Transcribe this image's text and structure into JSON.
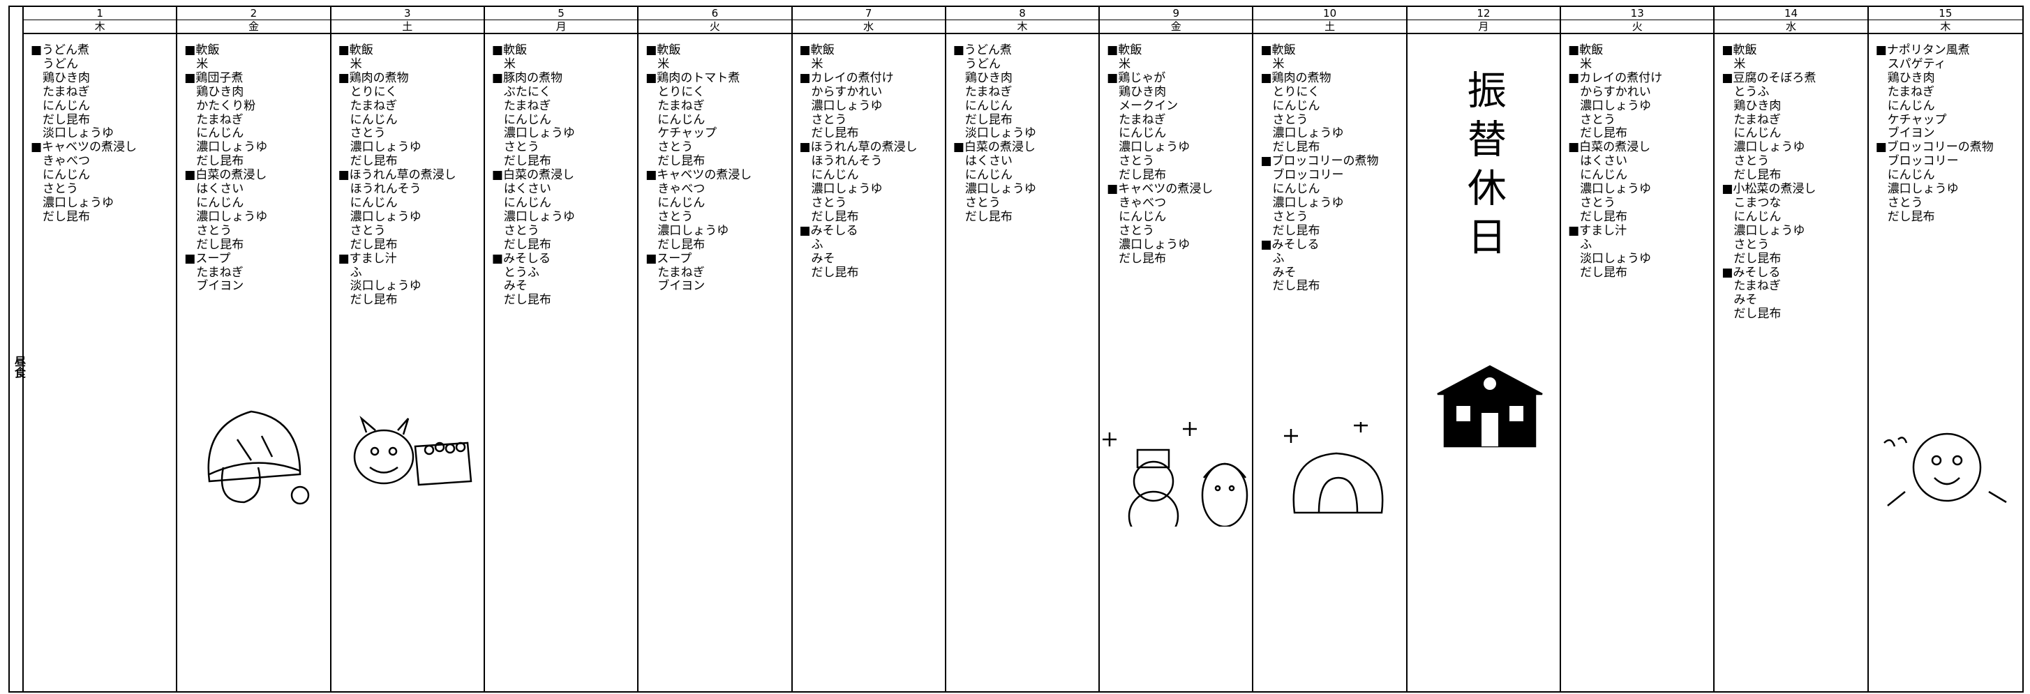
{
  "side_label": "昼食",
  "columns": [
    {
      "date": "1",
      "weekday": "木",
      "items": [
        {
          "name": "■うどん煮",
          "ingredients": [
            "うどん",
            "鶏ひき肉",
            "たまねぎ",
            "にんじん",
            "だし昆布",
            "淡口しょうゆ"
          ]
        },
        {
          "name": "■キャベツの煮浸し",
          "ingredients": [
            "きゃべつ",
            "にんじん",
            "さとう",
            "濃口しょうゆ",
            "だし昆布"
          ]
        }
      ]
    },
    {
      "date": "2",
      "weekday": "金",
      "items": [
        {
          "name": "■軟飯",
          "ingredients": [
            "米"
          ]
        },
        {
          "name": "■鶏団子煮",
          "ingredients": [
            "鶏ひき肉",
            "かたくり粉",
            "たまねぎ",
            "にんじん",
            "濃口しょうゆ",
            "だし昆布"
          ]
        },
        {
          "name": "■白菜の煮浸し",
          "ingredients": [
            "はくさい",
            "にんじん",
            "濃口しょうゆ",
            "さとう",
            "だし昆布"
          ]
        },
        {
          "name": "■スープ",
          "ingredients": [
            "たまねぎ",
            "ブイヨン"
          ]
        }
      ]
    },
    {
      "date": "3",
      "weekday": "土",
      "items": [
        {
          "name": "■軟飯",
          "ingredients": [
            "米"
          ]
        },
        {
          "name": "■鶏肉の煮物",
          "ingredients": [
            "とりにく",
            "たまねぎ",
            "にんじん",
            "さとう",
            "濃口しょうゆ",
            "だし昆布"
          ]
        },
        {
          "name": "■ほうれん草の煮浸し",
          "ingredients": [
            "ほうれんそう",
            "にんじん",
            "濃口しょうゆ",
            "さとう",
            "だし昆布"
          ]
        },
        {
          "name": "■すまし汁",
          "ingredients": [
            "ふ",
            "淡口しょうゆ",
            "だし昆布"
          ]
        }
      ]
    },
    {
      "date": "5",
      "weekday": "月",
      "items": [
        {
          "name": "■軟飯",
          "ingredients": [
            "米"
          ]
        },
        {
          "name": "■豚肉の煮物",
          "ingredients": [
            "ぶたにく",
            "たまねぎ",
            "にんじん",
            "濃口しょうゆ",
            "さとう",
            "だし昆布"
          ]
        },
        {
          "name": "■白菜の煮浸し",
          "ingredients": [
            "はくさい",
            "にんじん",
            "濃口しょうゆ",
            "さとう",
            "だし昆布"
          ]
        },
        {
          "name": "■みそしる",
          "ingredients": [
            "とうふ",
            "みそ",
            "だし昆布"
          ]
        }
      ]
    },
    {
      "date": "6",
      "weekday": "火",
      "items": [
        {
          "name": "■軟飯",
          "ingredients": [
            "米"
          ]
        },
        {
          "name": "■鶏肉のトマト煮",
          "ingredients": [
            "とりにく",
            "たまねぎ",
            "にんじん",
            "ケチャップ",
            "さとう",
            "だし昆布"
          ]
        },
        {
          "name": "■キャベツの煮浸し",
          "ingredients": [
            "きゃべつ",
            "にんじん",
            "さとう",
            "濃口しょうゆ",
            "だし昆布"
          ]
        },
        {
          "name": "■スープ",
          "ingredients": [
            "たまねぎ",
            "ブイヨン"
          ]
        }
      ]
    },
    {
      "date": "7",
      "weekday": "水",
      "items": [
        {
          "name": "■軟飯",
          "ingredients": [
            "米"
          ]
        },
        {
          "name": "■カレイの煮付け",
          "ingredients": [
            "からすかれい",
            "濃口しょうゆ",
            "さとう",
            "だし昆布"
          ]
        },
        {
          "name": "■ほうれん草の煮浸し",
          "ingredients": [
            "ほうれんそう",
            "にんじん",
            "濃口しょうゆ",
            "さとう",
            "だし昆布"
          ]
        },
        {
          "name": "■みそしる",
          "ingredients": [
            "ふ",
            "みそ",
            "だし昆布"
          ]
        }
      ]
    },
    {
      "date": "8",
      "weekday": "木",
      "items": [
        {
          "name": "■うどん煮",
          "ingredients": [
            "うどん",
            "鶏ひき肉",
            "たまねぎ",
            "にんじん",
            "だし昆布",
            "淡口しょうゆ"
          ]
        },
        {
          "name": "■白菜の煮浸し",
          "ingredients": [
            "はくさい",
            "にんじん",
            "濃口しょうゆ",
            "さとう",
            "だし昆布"
          ]
        }
      ]
    },
    {
      "date": "9",
      "weekday": "金",
      "items": [
        {
          "name": "■軟飯",
          "ingredients": [
            "米"
          ]
        },
        {
          "name": "■鶏じゃが",
          "ingredients": [
            "鶏ひき肉",
            "メークイン",
            "たまねぎ",
            "にんじん",
            "濃口しょうゆ",
            "さとう",
            "だし昆布"
          ]
        },
        {
          "name": "■キャベツの煮浸し",
          "ingredients": [
            "きゃべつ",
            "にんじん",
            "さとう",
            "濃口しょうゆ",
            "だし昆布"
          ]
        }
      ]
    },
    {
      "date": "10",
      "weekday": "土",
      "items": [
        {
          "name": "■軟飯",
          "ingredients": [
            "米"
          ]
        },
        {
          "name": "■鶏肉の煮物",
          "ingredients": [
            "とりにく",
            "にんじん",
            "さとう",
            "濃口しょうゆ",
            "だし昆布"
          ]
        },
        {
          "name": "■ブロッコリーの煮物",
          "ingredients": [
            "ブロッコリー",
            "にんじん",
            "濃口しょうゆ",
            "さとう",
            "だし昆布"
          ]
        },
        {
          "name": "■みそしる",
          "ingredients": [
            "ふ",
            "みそ",
            "だし昆布"
          ]
        }
      ]
    },
    {
      "date": "12",
      "weekday": "月",
      "note": "振替休日"
    },
    {
      "date": "13",
      "weekday": "火",
      "items": [
        {
          "name": "■軟飯",
          "ingredients": [
            "米"
          ]
        },
        {
          "name": "■カレイの煮付け",
          "ingredients": [
            "からすかれい",
            "濃口しょうゆ",
            "さとう",
            "だし昆布"
          ]
        },
        {
          "name": "■白菜の煮浸し",
          "ingredients": [
            "はくさい",
            "にんじん",
            "濃口しょうゆ",
            "さとう",
            "だし昆布"
          ]
        },
        {
          "name": "■すまし汁",
          "ingredients": [
            "ふ",
            "淡口しょうゆ",
            "だし昆布"
          ]
        }
      ]
    },
    {
      "date": "14",
      "weekday": "水",
      "items": [
        {
          "name": "■軟飯",
          "ingredients": [
            "米"
          ]
        },
        {
          "name": "■豆腐のそぼろ煮",
          "ingredients": [
            "とうふ",
            "鶏ひき肉",
            "たまねぎ",
            "にんじん",
            "濃口しょうゆ",
            "さとう",
            "だし昆布"
          ]
        },
        {
          "name": "■小松菜の煮浸し",
          "ingredients": [
            "こまつな",
            "にんじん",
            "濃口しょうゆ",
            "さとう",
            "だし昆布"
          ]
        },
        {
          "name": "■みそしる",
          "ingredients": [
            "たまねぎ",
            "みそ",
            "だし昆布"
          ]
        }
      ]
    },
    {
      "date": "15",
      "weekday": "木",
      "items": [
        {
          "name": "■ナポリタン風煮",
          "ingredients": [
            "スパゲティ",
            "鶏ひき肉",
            "たまねぎ",
            "にんじん",
            "ケチャップ",
            "ブイヨン"
          ]
        },
        {
          "name": "■ブロッコリーの煮物",
          "ingredients": [
            "ブロッコリー",
            "にんじん",
            "濃口しょうゆ",
            "さとう",
            "だし昆布"
          ]
        }
      ]
    }
  ]
}
